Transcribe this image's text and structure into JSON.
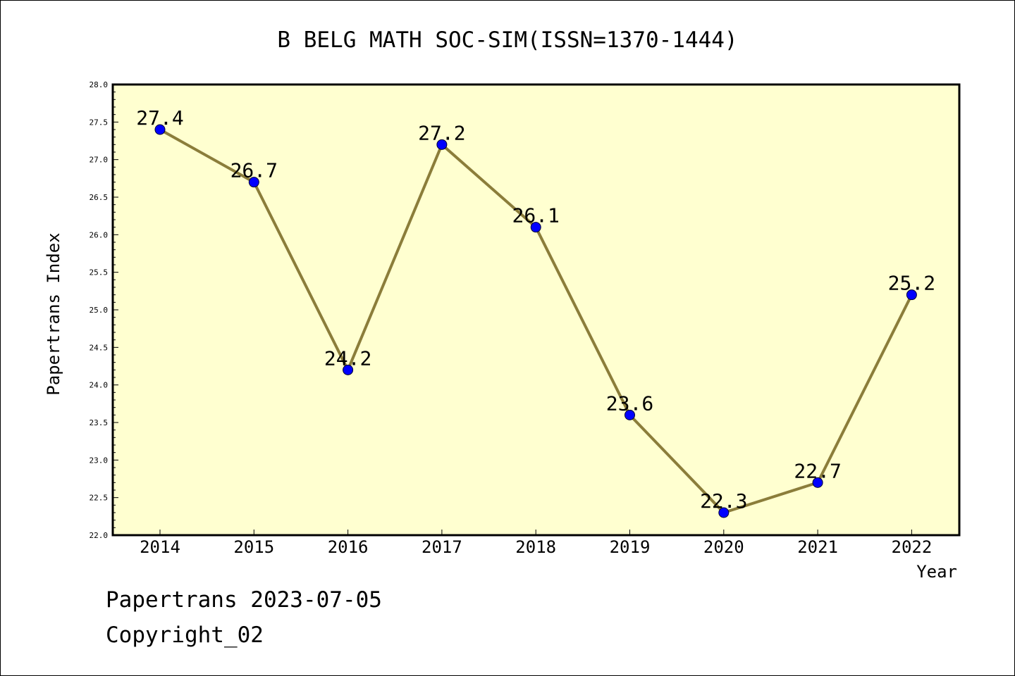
{
  "chart_data": {
    "type": "line",
    "title": "B BELG MATH SOC-SIM(ISSN=1370-1444)",
    "xlabel": "Year",
    "ylabel": "Papertrans Index",
    "categories": [
      "2014",
      "2015",
      "2016",
      "2017",
      "2018",
      "2019",
      "2020",
      "2021",
      "2022"
    ],
    "series": [
      {
        "values": [
          27.4,
          26.7,
          24.2,
          27.2,
          26.1,
          23.6,
          22.3,
          22.7,
          25.2
        ]
      }
    ],
    "data_labels": [
      "27.4",
      "26.7",
      "24.2",
      "27.2",
      "26.1",
      "23.6",
      "22.3",
      "22.7",
      "25.2"
    ],
    "ylim": [
      22.0,
      28.0
    ],
    "yticks": [
      "22.0",
      "22.5",
      "23.0",
      "23.5",
      "24.0",
      "24.5",
      "25.0",
      "25.5",
      "26.0",
      "26.5",
      "27.0",
      "27.5",
      "28.0"
    ],
    "grid": false,
    "colors": {
      "plot_background": "#ffffd0",
      "line": "#8b7d3a",
      "marker": "#0000ff"
    }
  },
  "footer": {
    "line1": "Papertrans 2023-07-05",
    "line2": "Copyright_02"
  }
}
